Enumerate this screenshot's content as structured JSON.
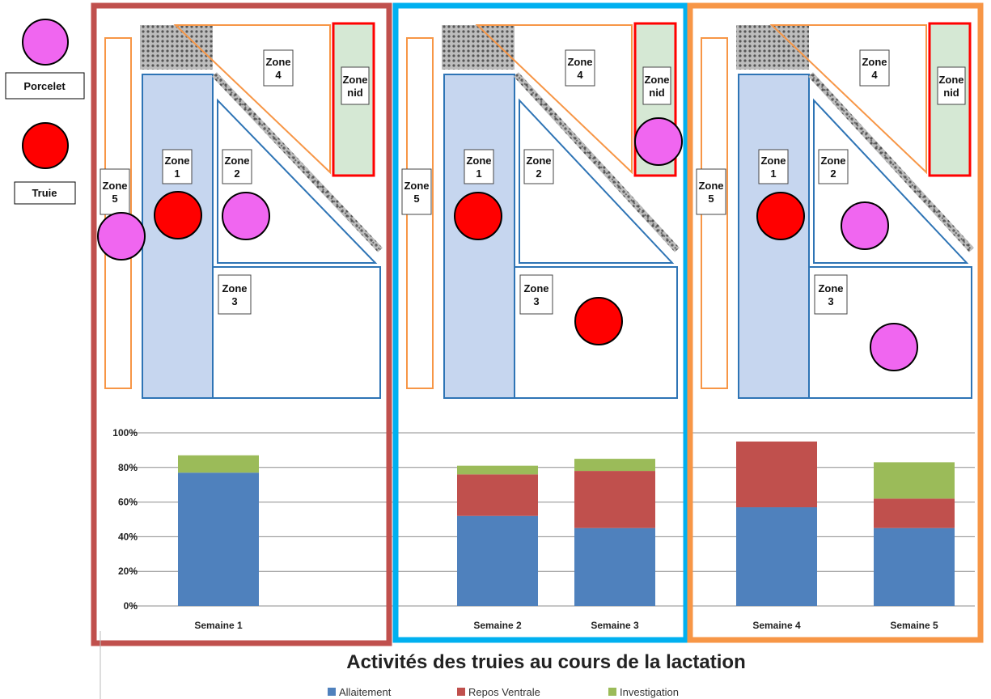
{
  "legend_key": {
    "porcelet": {
      "label": "Porcelet",
      "color": "#f066f0"
    },
    "truie": {
      "label": "Truie",
      "color": "#ff0000"
    }
  },
  "zones": {
    "zone1": [
      "Zone",
      "1"
    ],
    "zone2": [
      "Zone",
      "2"
    ],
    "zone3": [
      "Zone",
      "3"
    ],
    "zone4": [
      "Zone",
      "4"
    ],
    "zone5": [
      "Zone",
      "5"
    ],
    "zone_nid": [
      "Zone",
      "nid"
    ]
  },
  "panels": [
    {
      "border_color": "#c0504d",
      "weeks": [
        "Semaine 1"
      ]
    },
    {
      "border_color": "#00b0f0",
      "weeks": [
        "Semaine 2",
        "Semaine 3"
      ]
    },
    {
      "border_color": "#f79646",
      "weeks": [
        "Semaine 4",
        "Semaine 5"
      ]
    }
  ],
  "chart_data": {
    "type": "bar",
    "stacked": true,
    "title": "Activités des truies au cours de la lactation",
    "categories": [
      "Semaine 1",
      "Semaine 2",
      "Semaine 3",
      "Semaine 4",
      "Semaine 5"
    ],
    "series": [
      {
        "name": "Allaitement",
        "color": "#4f81bd",
        "values": [
          77,
          52,
          45,
          57,
          45
        ]
      },
      {
        "name": "Repos Ventrale",
        "color": "#c0504d",
        "values": [
          0,
          24,
          33,
          38,
          17
        ]
      },
      {
        "name": "Investigation",
        "color": "#9bbb59",
        "values": [
          10,
          5,
          7,
          0,
          21
        ]
      }
    ],
    "ylim": [
      0,
      100
    ],
    "yticks": [
      "0%",
      "20%",
      "40%",
      "60%",
      "80%",
      "100%"
    ],
    "grid": true,
    "legend_position": "bottom"
  }
}
